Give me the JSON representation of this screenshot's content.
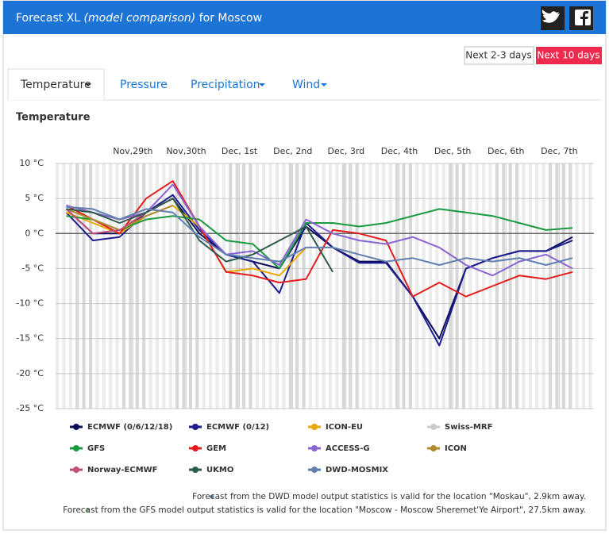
{
  "header": {
    "title": "Forecast XL",
    "subtitle": "(model comparison)",
    "location": "for Moscow"
  },
  "buttons": [
    "Next 2-3 days",
    "Next 10 days"
  ],
  "tabs": [
    "Temperature",
    "Pressure",
    "Precipitation",
    "Wind"
  ],
  "notes": [
    "Forecast from the DWD model output statistics is valid for the location \"Moskau\", 2.9km away.",
    "Forecast from the GFS model output statistics is valid for the location \"Moscow - Moscow Sheremet'Ye Airport\", 27.5km away."
  ],
  "chart_data": {
    "type": "line",
    "title": "Temperature",
    "x": [
      -0.25,
      0.25,
      0.75,
      1.25,
      1.75,
      2.25,
      2.75,
      3.25,
      3.75,
      4.25,
      4.75,
      5.25,
      5.75,
      6.25,
      6.75,
      7.25,
      7.75,
      8.25,
      8.75,
      9.25
    ],
    "xlim": [
      -0.45,
      9.65
    ],
    "xticks": [
      {
        "value": 1,
        "label": "Nov,29th"
      },
      {
        "value": 2,
        "label": "Nov,30th"
      },
      {
        "value": 3,
        "label": "Dec, 1st"
      },
      {
        "value": 4,
        "label": "Dec, 2nd"
      },
      {
        "value": 5,
        "label": "Dec, 3rd"
      },
      {
        "value": 6,
        "label": "Dec, 4th"
      },
      {
        "value": 7,
        "label": "Dec, 5th"
      },
      {
        "value": 8,
        "label": "Dec, 6th"
      },
      {
        "value": 9,
        "label": "Dec, 7th"
      }
    ],
    "ylim": [
      -25,
      10
    ],
    "yticks": [
      {
        "value": 10,
        "label": "10 °C"
      },
      {
        "value": 5,
        "label": "5 °C"
      },
      {
        "value": 0,
        "label": "0 °C"
      },
      {
        "value": -5,
        "label": "-5 °C"
      },
      {
        "value": -10,
        "label": "-10 °C"
      },
      {
        "value": -15,
        "label": "-15 °C"
      },
      {
        "value": -20,
        "label": "-20 °C"
      },
      {
        "value": -25,
        "label": "-25 °C"
      }
    ],
    "grid": true,
    "series": [
      {
        "name": "ECMWF (0/6/12/18)",
        "color": "#0c0c5a",
        "values": [
          3.5,
          0,
          0,
          3,
          5,
          0,
          -3,
          -4,
          -5,
          1,
          -2,
          -4,
          -4,
          -9,
          -15,
          -5,
          -3.5,
          -2.5,
          -2.5,
          -0.5
        ]
      },
      {
        "name": "ECMWF (0/12)",
        "color": "#1c1c8e",
        "values": [
          3,
          -1,
          -0.5,
          3,
          5.5,
          0.5,
          -3,
          -4,
          -8.5,
          1.5,
          -2,
          -4.2,
          -4.2,
          -9,
          -16,
          -5,
          -3.5,
          -2.5,
          -2.5,
          -1
        ]
      },
      {
        "name": "ICON-EU",
        "color": "#e8a800",
        "values": [
          3,
          1.5,
          0,
          2.5,
          4,
          1,
          -5.5,
          -5,
          -6,
          -2,
          null,
          null,
          null,
          null,
          null,
          null,
          null,
          null,
          null,
          null
        ]
      },
      {
        "name": "Swiss-MRF",
        "color": "#cccccc",
        "values": [
          null,
          null,
          null,
          null,
          null,
          null,
          null,
          null,
          null,
          null,
          null,
          null,
          null,
          null,
          null,
          null,
          null,
          null,
          null,
          null
        ]
      },
      {
        "name": "GFS",
        "color": "#1a9a40",
        "values": [
          2.5,
          2,
          0.5,
          2,
          2.5,
          2,
          -1,
          -1.5,
          -5,
          1.5,
          1.5,
          1,
          1.5,
          2.5,
          3.5,
          3,
          2.5,
          1.5,
          0.5,
          0.8
        ]
      },
      {
        "name": "GEM",
        "color": "#e51c1c",
        "values": [
          4,
          2,
          0,
          5,
          7.5,
          1,
          -5.5,
          -6,
          -7,
          -6.5,
          0.5,
          0,
          -1,
          -9,
          -7,
          -9,
          -7.5,
          -6,
          -6.5,
          -5.5
        ]
      },
      {
        "name": "ACCESS-G",
        "color": "#8a63d2",
        "values": [
          4,
          3,
          2,
          3,
          7,
          1,
          -3,
          -2.5,
          -4.5,
          2,
          0,
          -1,
          -1.5,
          -0.5,
          -2,
          -4.5,
          -6,
          -4,
          -3,
          -5
        ]
      },
      {
        "name": "ICON",
        "color": "#b08a30",
        "values": [
          3.5,
          2,
          0.5,
          2.5,
          4,
          null,
          null,
          null,
          null,
          null,
          null,
          null,
          null,
          null,
          null,
          null,
          null,
          null,
          null,
          null
        ]
      },
      {
        "name": "Norway-ECMWF",
        "color": "#c0507a",
        "values": [
          3.5,
          0,
          0.5,
          3,
          5,
          null,
          null,
          null,
          null,
          null,
          null,
          null,
          null,
          null,
          null,
          null,
          null,
          null,
          null,
          null
        ]
      },
      {
        "name": "UKMO",
        "color": "#2e5a4a",
        "values": [
          3.5,
          3,
          1.5,
          3,
          5,
          -1,
          -4,
          -3,
          -1,
          1,
          -5.5,
          null,
          null,
          null,
          null,
          null,
          null,
          null,
          null,
          null
        ]
      },
      {
        "name": "DWD-MOSMIX",
        "color": "#5f7fae",
        "values": [
          3.8,
          3.5,
          2,
          3.5,
          3,
          -0.5,
          -3,
          -3.5,
          -4,
          -2,
          -2,
          -3,
          -4,
          -3.5,
          -4.5,
          -3.5,
          -4,
          -3.5,
          -4.5,
          -3.5
        ]
      }
    ]
  }
}
